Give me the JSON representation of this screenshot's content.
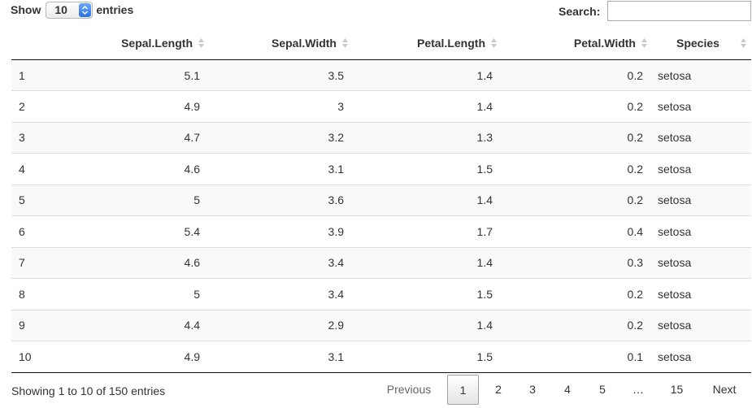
{
  "length_control": {
    "prefix": "Show",
    "selected": "10",
    "suffix": "entries"
  },
  "search": {
    "label": "Search:",
    "value": ""
  },
  "table": {
    "columns": [
      "",
      "Sepal.Length",
      "Sepal.Width",
      "Petal.Length",
      "Petal.Width",
      "Species"
    ],
    "rows": [
      [
        "1",
        "5.1",
        "3.5",
        "1.4",
        "0.2",
        "setosa"
      ],
      [
        "2",
        "4.9",
        "3",
        "1.4",
        "0.2",
        "setosa"
      ],
      [
        "3",
        "4.7",
        "3.2",
        "1.3",
        "0.2",
        "setosa"
      ],
      [
        "4",
        "4.6",
        "3.1",
        "1.5",
        "0.2",
        "setosa"
      ],
      [
        "5",
        "5",
        "3.6",
        "1.4",
        "0.2",
        "setosa"
      ],
      [
        "6",
        "5.4",
        "3.9",
        "1.7",
        "0.4",
        "setosa"
      ],
      [
        "7",
        "4.6",
        "3.4",
        "1.4",
        "0.3",
        "setosa"
      ],
      [
        "8",
        "5",
        "3.4",
        "1.5",
        "0.2",
        "setosa"
      ],
      [
        "9",
        "4.4",
        "2.9",
        "1.4",
        "0.2",
        "setosa"
      ],
      [
        "10",
        "4.9",
        "3.1",
        "1.5",
        "0.1",
        "setosa"
      ]
    ]
  },
  "info": "Showing 1 to 10 of 150 entries",
  "pagination": {
    "previous": "Previous",
    "pages": [
      "1",
      "2",
      "3",
      "4",
      "5",
      "…",
      "15"
    ],
    "current": "1",
    "next": "Next"
  },
  "colors": {
    "select_accent": "#2b72e6",
    "stripe": "#f9f9f9",
    "sort_icon": "#c8c8c8"
  }
}
